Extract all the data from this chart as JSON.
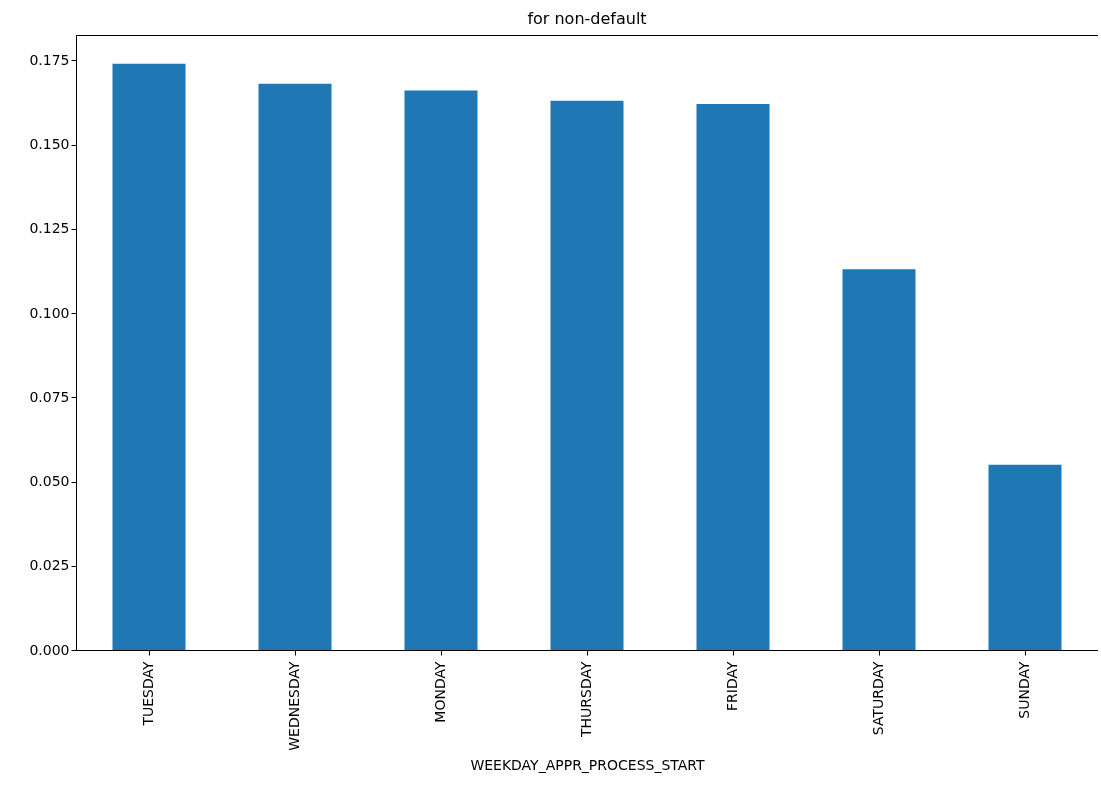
{
  "chart_data": {
    "type": "bar",
    "title": "for non-default",
    "xlabel": "WEEKDAY_APPR_PROCESS_START",
    "categories": [
      "TUESDAY",
      "WEDNESDAY",
      "MONDAY",
      "THURSDAY",
      "FRIDAY",
      "SATURDAY",
      "SUNDAY"
    ],
    "values": [
      0.174,
      0.168,
      0.166,
      0.163,
      0.162,
      0.113,
      0.055
    ],
    "color": "#1f77b4",
    "ylim": [
      0,
      0.1825
    ],
    "yticks": [
      {
        "value": 0,
        "label": "0.000"
      },
      {
        "value": 0.025,
        "label": "0.025"
      },
      {
        "value": 0.05,
        "label": "0.050"
      },
      {
        "value": 0.075,
        "label": "0.075"
      },
      {
        "value": 0.1,
        "label": "0.100"
      },
      {
        "value": 0.125,
        "label": "0.125"
      },
      {
        "value": 0.15,
        "label": "0.150"
      },
      {
        "value": 0.175,
        "label": "0.175"
      }
    ],
    "grid": false
  }
}
